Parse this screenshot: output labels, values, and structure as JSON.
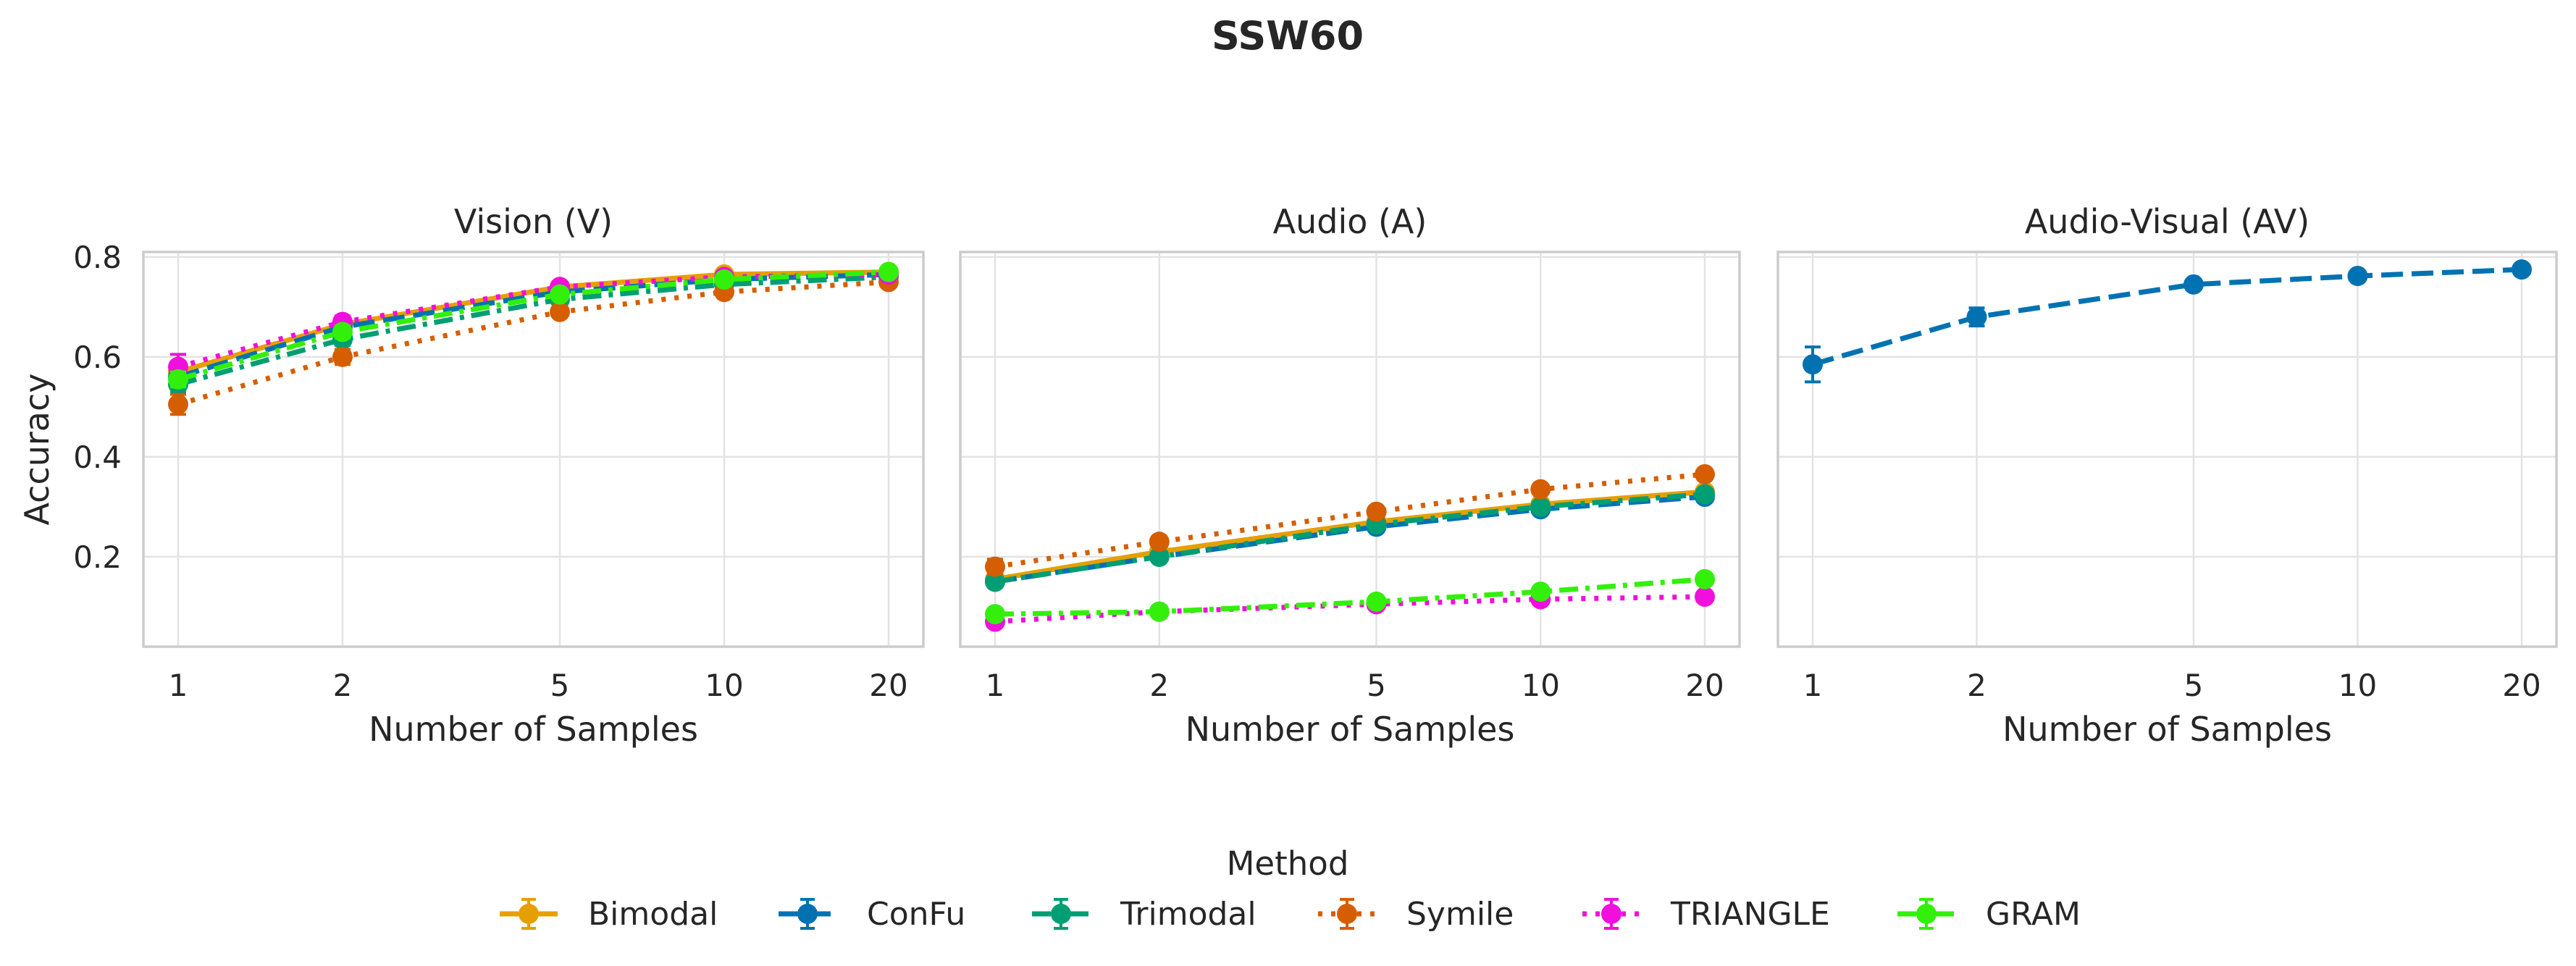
{
  "figure": {
    "title": "SSW60"
  },
  "legend": {
    "title": "Method"
  },
  "colors": {
    "Bimodal": "#E69F00",
    "ConFu": "#0072B2",
    "Trimodal": "#009E73",
    "Symile": "#D55E00",
    "TRIANGLE": "#F00FDC",
    "GRAM": "#32F00A",
    "grid": "#e3e3e3",
    "frame": "#cccccc"
  },
  "chart_data": [
    {
      "type": "line",
      "title": "Vision (V)",
      "xlabel": "Number of Samples",
      "ylabel": "Accuracy",
      "xscale": "log",
      "x": [
        1,
        2,
        5,
        10,
        20
      ],
      "xticks": [
        "1",
        "2",
        "5",
        "10",
        "20"
      ],
      "ylim": [
        0.02,
        0.81
      ],
      "yticks": [
        0.2,
        0.4,
        0.6,
        0.8
      ],
      "ytick_labels": [
        "0.2",
        "0.4",
        "0.6",
        "0.8"
      ],
      "grid": true,
      "series": [
        {
          "name": "Bimodal",
          "values": [
            0.57,
            0.665,
            0.74,
            0.765,
            0.77
          ],
          "err": [
            0.015,
            0.012,
            0.008,
            0.006,
            0.005
          ]
        },
        {
          "name": "ConFu",
          "values": [
            0.56,
            0.66,
            0.73,
            0.755,
            0.765
          ],
          "err": [
            0.015,
            0.012,
            0.008,
            0.006,
            0.005
          ]
        },
        {
          "name": "Trimodal",
          "values": [
            0.545,
            0.635,
            0.715,
            0.745,
            0.76
          ],
          "err": [
            0.015,
            0.012,
            0.008,
            0.006,
            0.005
          ]
        },
        {
          "name": "Symile",
          "values": [
            0.505,
            0.6,
            0.69,
            0.73,
            0.75
          ],
          "err": [
            0.02,
            0.015,
            0.01,
            0.008,
            0.006
          ]
        },
        {
          "name": "TRIANGLE",
          "values": [
            0.58,
            0.67,
            0.74,
            0.76,
            0.765
          ],
          "err": [
            0.025,
            0.012,
            0.008,
            0.006,
            0.005
          ]
        },
        {
          "name": "GRAM",
          "values": [
            0.555,
            0.65,
            0.725,
            0.755,
            0.77
          ],
          "err": [
            0.015,
            0.012,
            0.008,
            0.006,
            0.005
          ]
        }
      ]
    },
    {
      "type": "line",
      "title": "Audio (A)",
      "xlabel": "Number of Samples",
      "xscale": "log",
      "x": [
        1,
        2,
        5,
        10,
        20
      ],
      "xticks": [
        "1",
        "2",
        "5",
        "10",
        "20"
      ],
      "ylim": [
        0.02,
        0.81
      ],
      "yticks": [
        0.2,
        0.4,
        0.6,
        0.8
      ],
      "grid": true,
      "series": [
        {
          "name": "Bimodal",
          "values": [
            0.155,
            0.21,
            0.27,
            0.305,
            0.33
          ],
          "err": [
            0.01,
            0.008,
            0.006,
            0.005,
            0.005
          ]
        },
        {
          "name": "ConFu",
          "values": [
            0.15,
            0.2,
            0.26,
            0.295,
            0.32
          ],
          "err": [
            0.01,
            0.008,
            0.006,
            0.005,
            0.005
          ]
        },
        {
          "name": "Trimodal",
          "values": [
            0.15,
            0.2,
            0.265,
            0.3,
            0.325
          ],
          "err": [
            0.01,
            0.008,
            0.006,
            0.005,
            0.005
          ]
        },
        {
          "name": "Symile",
          "values": [
            0.18,
            0.23,
            0.29,
            0.335,
            0.365
          ],
          "err": [
            0.015,
            0.01,
            0.008,
            0.006,
            0.005
          ]
        },
        {
          "name": "TRIANGLE",
          "values": [
            0.07,
            0.09,
            0.105,
            0.115,
            0.12
          ],
          "err": [
            0.008,
            0.006,
            0.005,
            0.005,
            0.005
          ]
        },
        {
          "name": "GRAM",
          "values": [
            0.085,
            0.09,
            0.11,
            0.13,
            0.155
          ],
          "err": [
            0.008,
            0.006,
            0.005,
            0.005,
            0.005
          ]
        }
      ]
    },
    {
      "type": "line",
      "title": "Audio-Visual (AV)",
      "xlabel": "Number of Samples",
      "xscale": "log",
      "x": [
        1,
        2,
        5,
        10,
        20
      ],
      "xticks": [
        "1",
        "2",
        "5",
        "10",
        "20"
      ],
      "ylim": [
        0.02,
        0.81
      ],
      "yticks": [
        0.2,
        0.4,
        0.6,
        0.8
      ],
      "grid": true,
      "series": [
        {
          "name": "ConFu",
          "values": [
            0.585,
            0.68,
            0.745,
            0.762,
            0.775
          ],
          "err": [
            0.035,
            0.018,
            0.008,
            0.006,
            0.005
          ]
        }
      ]
    }
  ],
  "legend_items": [
    "Bimodal",
    "ConFu",
    "Trimodal",
    "Symile",
    "TRIANGLE",
    "GRAM"
  ]
}
